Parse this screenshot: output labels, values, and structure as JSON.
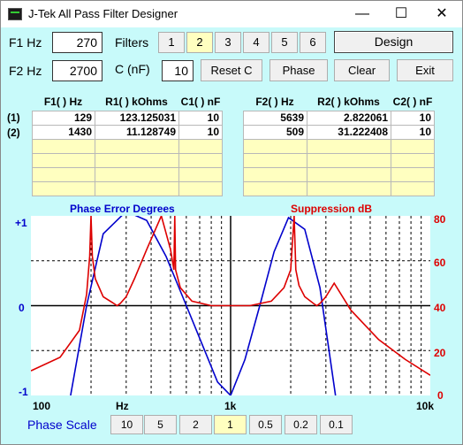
{
  "window": {
    "title": "J-Tek All Pass Filter Designer",
    "controls": {
      "minimize": "—",
      "maximize": "☐",
      "close": "✕"
    }
  },
  "inputs": {
    "f1_label": "F1 Hz",
    "f1_value": "270",
    "f2_label": "F2 Hz",
    "f2_value": "2700",
    "c_label": "C (nF)",
    "c_value": "10"
  },
  "filters": {
    "label": "Filters",
    "options": [
      "1",
      "2",
      "3",
      "4",
      "5",
      "6"
    ],
    "selected": "2"
  },
  "buttons": {
    "design": "Design",
    "reset_c": "Reset C",
    "phase": "Phase",
    "clear": "Clear",
    "exit": "Exit"
  },
  "table1": {
    "headers": [
      "F1( ) Hz",
      "R1( ) kOhms",
      "C1( ) nF"
    ],
    "rows": [
      [
        "129",
        "123.125031",
        "10"
      ],
      [
        "1430",
        "11.128749",
        "10"
      ],
      [
        "",
        "",
        ""
      ],
      [
        "",
        "",
        ""
      ],
      [
        "",
        "",
        ""
      ],
      [
        "",
        "",
        ""
      ]
    ]
  },
  "table2": {
    "headers": [
      "F2( ) Hz",
      "R2( ) kOhms",
      "C2( ) nF"
    ],
    "rows": [
      [
        "5639",
        "2.822061",
        "10"
      ],
      [
        "509",
        "31.222408",
        "10"
      ],
      [
        "",
        "",
        ""
      ],
      [
        "",
        "",
        ""
      ],
      [
        "",
        "",
        ""
      ],
      [
        "",
        "",
        ""
      ]
    ]
  },
  "row_labels": [
    "(1)",
    "(2)"
  ],
  "chart": {
    "phase_title": "Phase Error Degrees",
    "suppression_title": "Suppression dB",
    "left_ticks": [
      "+1",
      "0",
      "-1"
    ],
    "right_ticks": [
      "80",
      "60",
      "40",
      "20",
      "0"
    ],
    "x_ticks": [
      "100",
      "Hz",
      "1k",
      "10k"
    ],
    "phase_color": "#0000cc",
    "suppression_color": "#dd0000"
  },
  "chart_data": {
    "type": "line",
    "x_scale": "log",
    "xlim": [
      100,
      10000
    ],
    "y_left_lim": [
      -1,
      1
    ],
    "y_right_lim": [
      0,
      80
    ],
    "series": [
      {
        "axis": "left",
        "x": [
          158,
          190,
          230,
          300,
          380,
          475,
          600,
          860,
          1000,
          1180,
          1400,
          1650,
          1950,
          2350,
          2800,
          3350
        ],
        "y": [
          -1,
          0,
          0.8,
          1.05,
          0.95,
          0.55,
          0,
          -0.85,
          -1,
          -0.6,
          0,
          0.6,
          0.98,
          0.85,
          0.2,
          -1
        ]
      },
      {
        "axis": "right",
        "x": [
          100,
          140,
          175,
          190,
          197,
          200,
          203,
          210,
          230,
          260,
          270,
          280,
          300,
          330,
          380,
          450,
          500,
          520,
          525,
          530,
          560,
          640,
          800,
          1000,
          1250,
          1600,
          1850,
          2000,
          2080,
          2120,
          2200,
          2350,
          2600,
          2700,
          2800,
          3000,
          3300,
          4000,
          5500,
          7500,
          10000
        ],
        "y": [
          11,
          17,
          29,
          45,
          62,
          80,
          62,
          52,
          44,
          41,
          40,
          41,
          44,
          52,
          65,
          80,
          65,
          56,
          80,
          56,
          48,
          42,
          40,
          40,
          40,
          42,
          48,
          56,
          80,
          56,
          49,
          44,
          41,
          40,
          41,
          44,
          50,
          38,
          25,
          16,
          9
        ]
      }
    ]
  },
  "phase_scale": {
    "label": "Phase Scale",
    "options": [
      "10",
      "5",
      "2",
      "1",
      "0.5",
      "0.2",
      "0.1"
    ],
    "selected": "1"
  }
}
